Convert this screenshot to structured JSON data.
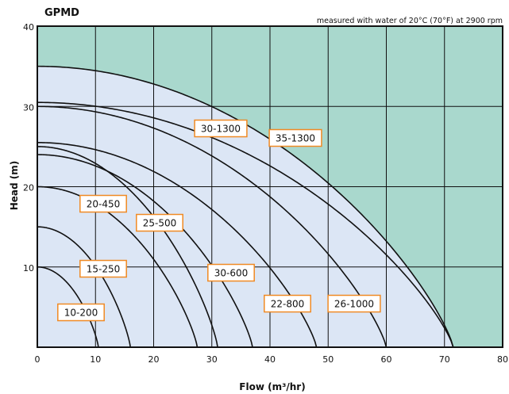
{
  "chart_data": {
    "type": "line",
    "title": "GPMD",
    "subtitle": "measured with water of 20°C (70°F) at 2900 rpm",
    "xlabel": "Flow (m³/hr)",
    "ylabel": "Head (m)",
    "xlim": [
      0,
      80
    ],
    "ylim": [
      0,
      40
    ],
    "xticks": [
      "0",
      "10",
      "20",
      "30",
      "40",
      "50",
      "60",
      "70",
      "80"
    ],
    "yticks": [
      "10",
      "20",
      "30",
      "40"
    ],
    "grid": true,
    "colors": {
      "envelope_fill": "#a9d8cd",
      "plot_fill": "#dce6f5",
      "curve": "#111111",
      "label_border": "#f08a24",
      "label_fill": "#ffffff"
    },
    "series": [
      {
        "name": "10-200",
        "shutoff_head": 10,
        "max_flow": 10.5
      },
      {
        "name": "15-250",
        "shutoff_head": 15,
        "max_flow": 16
      },
      {
        "name": "20-450",
        "shutoff_head": 20,
        "max_flow": 27.5
      },
      {
        "name": "25-500",
        "shutoff_head": 25,
        "max_flow": 31
      },
      {
        "name": "30-600",
        "shutoff_head": 24,
        "max_flow": 37
      },
      {
        "name": "22-800",
        "shutoff_head": 25.5,
        "max_flow": 48
      },
      {
        "name": "26-1000",
        "shutoff_head": 30,
        "max_flow": 60
      },
      {
        "name": "30-1300",
        "shutoff_head": 30.5,
        "max_flow": 71.5
      },
      {
        "name": "35-1300",
        "shutoff_head": 35,
        "max_flow": 71.5
      }
    ]
  }
}
